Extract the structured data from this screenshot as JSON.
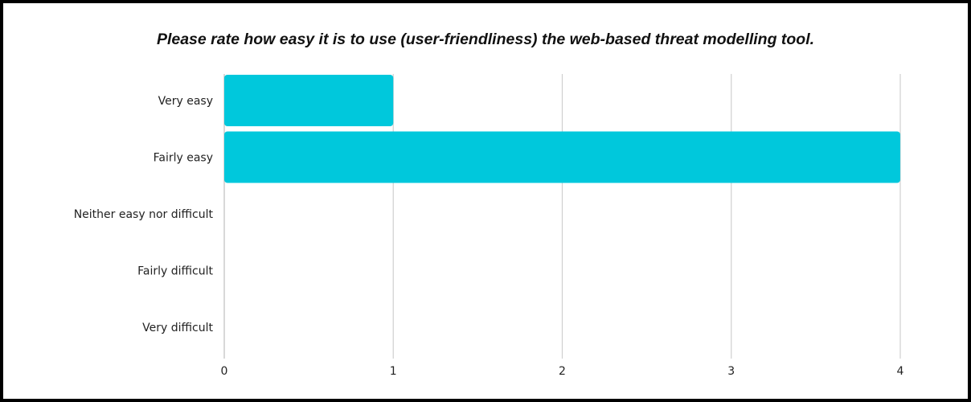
{
  "chart_data": {
    "type": "bar",
    "orientation": "horizontal",
    "title": "Please rate how easy it is to use (user-friendliness) the web-based threat modelling tool.",
    "xlabel": "",
    "ylabel": "",
    "categories": [
      "Very easy",
      "Fairly easy",
      "Neither easy nor difficult",
      "Fairly difficult",
      "Very difficult"
    ],
    "values": [
      1,
      4,
      0,
      0,
      0
    ],
    "xlim": [
      0,
      4
    ],
    "xticks": [
      "0",
      "1",
      "2",
      "3",
      "4"
    ],
    "grid": "vertical",
    "legend": "none",
    "bar_color": "#00c8dc"
  }
}
